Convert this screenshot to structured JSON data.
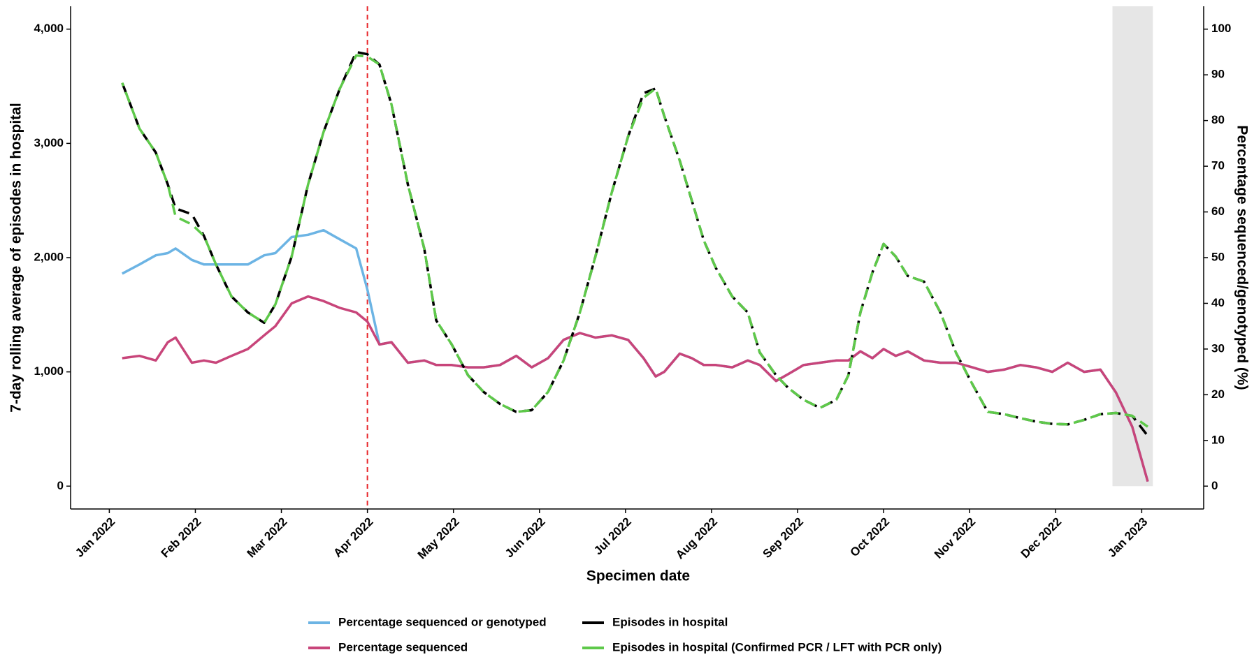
{
  "chart_data": {
    "type": "line",
    "xlabel": "Specimen date",
    "ylabel": "7-day rolling average of episodes in hospital",
    "y2label": "Percentage sequenced/genotyped (%)",
    "xlim": [
      -0.45,
      12.72
    ],
    "xticks": [
      {
        "value": 0,
        "label": "Jan 2022"
      },
      {
        "value": 1,
        "label": "Feb 2022"
      },
      {
        "value": 2,
        "label": "Mar 2022"
      },
      {
        "value": 3,
        "label": "Apr 2022"
      },
      {
        "value": 4,
        "label": "May 2022"
      },
      {
        "value": 5,
        "label": "Jun 2022"
      },
      {
        "value": 6,
        "label": "Jul 2022"
      },
      {
        "value": 7,
        "label": "Aug 2022"
      },
      {
        "value": 8,
        "label": "Sep 2022"
      },
      {
        "value": 9,
        "label": "Oct 2022"
      },
      {
        "value": 10,
        "label": "Nov 2022"
      },
      {
        "value": 11,
        "label": "Dec 2022"
      },
      {
        "value": 12,
        "label": "Jan 2023"
      }
    ],
    "ylim": [
      -200,
      4200
    ],
    "yticks": [
      0,
      {
        "value": 1000,
        "label": "1,000"
      },
      {
        "value": 2000,
        "label": "2,000"
      },
      {
        "value": 3000,
        "label": "3,000"
      },
      {
        "value": 4000,
        "label": "4,000"
      }
    ],
    "y2lim": [
      -5,
      105
    ],
    "y2ticks": [
      0,
      10,
      20,
      30,
      40,
      50,
      60,
      70,
      80,
      90,
      100
    ],
    "vline": 3,
    "vline_color": "#e8262a",
    "shaded_range": [
      11.66,
      12.13
    ],
    "shade_color": "#e6e6e6",
    "x": [
      0.15,
      0.35,
      0.54,
      0.68,
      0.77,
      0.96,
      1.1,
      1.24,
      1.42,
      1.61,
      1.8,
      1.93,
      2.12,
      2.31,
      2.49,
      2.68,
      2.87,
      3.0,
      3.14,
      3.28,
      3.47,
      3.66,
      3.8,
      3.98,
      4.17,
      4.35,
      4.54,
      4.73,
      4.91,
      5.1,
      5.28,
      5.47,
      5.65,
      5.84,
      6.03,
      6.21,
      6.35,
      6.45,
      6.63,
      6.77,
      6.91,
      7.05,
      7.24,
      7.42,
      7.56,
      7.75,
      7.89,
      8.07,
      8.26,
      8.45,
      8.59,
      8.73,
      8.87,
      9.0,
      9.14,
      9.28,
      9.47,
      9.66,
      9.84,
      10.03,
      10.21,
      10.4,
      10.59,
      10.77,
      10.96,
      11.14,
      11.33,
      11.52,
      11.7,
      11.89,
      12.07
    ],
    "series": [
      {
        "name": "Percentage sequenced or genotyped",
        "color": "#6cb4e4",
        "axis": "y2",
        "line_style": "solid",
        "values": [
          46.5,
          48.5,
          50.5,
          51,
          52,
          49.5,
          48.5,
          48.5,
          48.5,
          48.5,
          50.5,
          51,
          54.5,
          55,
          56,
          54,
          52,
          43,
          31,
          31.5,
          27,
          27.5,
          26.5,
          26.5,
          26,
          26,
          26.5,
          28.5,
          26,
          28,
          32,
          33.5,
          32.5,
          33,
          32,
          28,
          24,
          25,
          29,
          28,
          26.5,
          26.5,
          26,
          27.5,
          26.5,
          23,
          24.5,
          26.5,
          27,
          27.5,
          27.5,
          29.5,
          28,
          30,
          28.5,
          29.5,
          27.5,
          27,
          27,
          26,
          25,
          25.5,
          26.5,
          26,
          25,
          27,
          25,
          25.5,
          20.5,
          13,
          1
        ]
      },
      {
        "name": "Percentage sequenced",
        "color": "#c8457a",
        "axis": "y2",
        "line_style": "solid",
        "values": [
          28,
          28.5,
          27.5,
          31.5,
          32.5,
          27,
          27.5,
          27,
          28.5,
          30,
          33,
          35,
          40,
          41.5,
          40.5,
          39,
          38,
          36,
          31,
          31.5,
          27,
          27.5,
          26.5,
          26.5,
          26,
          26,
          26.5,
          28.5,
          26,
          28,
          32,
          33.5,
          32.5,
          33,
          32,
          28,
          24,
          25,
          29,
          28,
          26.5,
          26.5,
          26,
          27.5,
          26.5,
          23,
          24.5,
          26.5,
          27,
          27.5,
          27.5,
          29.5,
          28,
          30,
          28.5,
          29.5,
          27.5,
          27,
          27,
          26,
          25,
          25.5,
          26.5,
          26,
          25,
          27,
          25,
          25.5,
          20.5,
          13,
          1
        ]
      },
      {
        "name": "Episodes in hospital",
        "color": "#000000",
        "axis": "y",
        "line_style": "dashed",
        "values": [
          3530,
          3130,
          2920,
          2640,
          2430,
          2380,
          2190,
          1940,
          1660,
          1520,
          1430,
          1590,
          2010,
          2640,
          3100,
          3480,
          3800,
          3780,
          3690,
          3340,
          2640,
          2080,
          1450,
          1240,
          970,
          825,
          720,
          650,
          665,
          825,
          1100,
          1520,
          2010,
          2570,
          3060,
          3440,
          3480,
          3240,
          2850,
          2500,
          2150,
          1910,
          1660,
          1520,
          1170,
          970,
          860,
          755,
          685,
          755,
          970,
          1520,
          1870,
          2120,
          2010,
          1840,
          1790,
          1520,
          1170,
          895,
          650,
          630,
          595,
          565,
          545,
          540,
          580,
          630,
          640,
          615,
          440
        ]
      },
      {
        "name": "Episodes in hospital (Confirmed PCR / LFT with PCR only)",
        "color": "#5ec94a",
        "axis": "y",
        "line_style": "dashed",
        "values": [
          3530,
          3130,
          2920,
          2640,
          2360,
          2290,
          2190,
          1940,
          1660,
          1520,
          1430,
          1590,
          2010,
          2640,
          3100,
          3480,
          3770,
          3760,
          3690,
          3340,
          2640,
          2080,
          1450,
          1240,
          970,
          825,
          720,
          650,
          665,
          825,
          1100,
          1520,
          2010,
          2570,
          3060,
          3400,
          3480,
          3240,
          2850,
          2500,
          2150,
          1910,
          1660,
          1520,
          1170,
          970,
          860,
          755,
          685,
          755,
          970,
          1520,
          1870,
          2120,
          2010,
          1840,
          1790,
          1520,
          1170,
          895,
          650,
          630,
          595,
          565,
          545,
          540,
          580,
          630,
          640,
          615,
          520
        ]
      }
    ]
  }
}
